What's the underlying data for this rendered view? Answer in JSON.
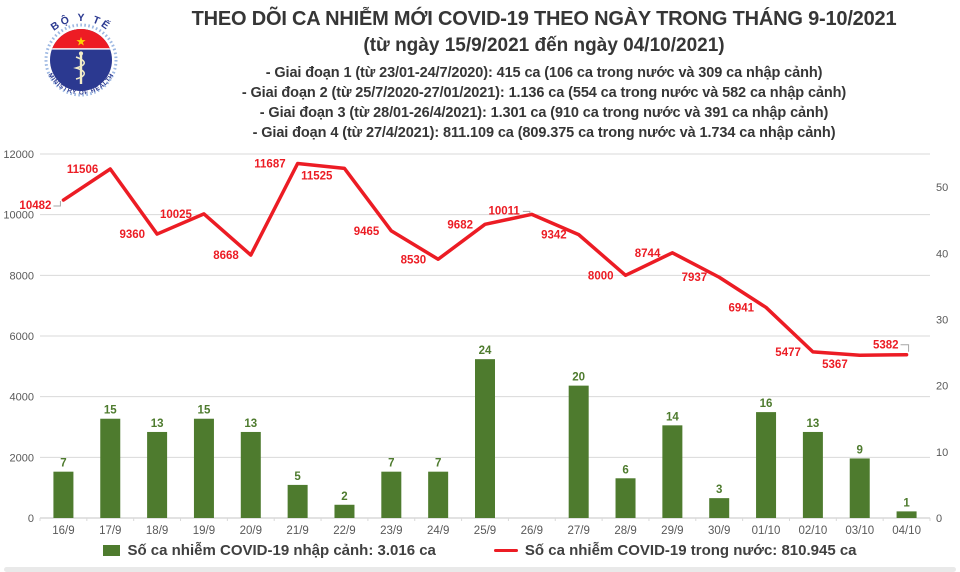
{
  "header": {
    "title": "THEO DÕI CA NHIỄM MỚI COVID-19 THEO NGÀY TRONG THÁNG 9-10/2021",
    "subtitle": "(từ ngày 15/9/2021 đến ngày 04/10/2021)",
    "phases": [
      "- Giai đoạn 1 (từ 23/01-24/7/2020): 415 ca (106 ca trong nước và 309 ca nhập cảnh)",
      "- Giai đoạn 2 (từ 25/7/2020-27/01/2021): 1.136 ca (554 ca trong nước và 582 ca nhập cảnh)",
      "- Giai đoạn 3 (từ 28/01-26/4/2021): 1.301 ca (910 ca trong nước và 391 ca nhập cảnh)",
      "- Giai đoạn 4 (từ 27/4/2021): 811.109 ca (809.375 ca trong nước và 1.734 ca nhập cảnh)"
    ]
  },
  "logo": {
    "top_text": "BỘ Y TẾ",
    "bottom_text": "MINISTRY OF HEALTH"
  },
  "legend": {
    "bars_label": "Số ca nhiễm COVID-19 nhập cảnh: 3.016 ca",
    "line_label": "Số ca nhiễm COVID-19 trong nước: 810.945 ca"
  },
  "colors": {
    "bar": "#4e7b2e",
    "bar_label": "#4e7b2e",
    "line": "#ec1c24",
    "line_label": "#ec1c24",
    "grid": "#d9d9d9",
    "axis_line": "#c6c6c6",
    "axis_text": "#595959",
    "leader": "#a6a6a6",
    "title_text": "#363636",
    "logo_blue": "#2b3990",
    "logo_red": "#ed1c24",
    "logo_star": "#ffd400"
  },
  "chart_data": {
    "type": "combo-bar-line",
    "title": "THEO DÕI CA NHIỄM MỚI COVID-19 THEO NGÀY TRONG THÁNG 9-10/2021",
    "categories": [
      "16/9",
      "17/9",
      "18/9",
      "19/9",
      "20/9",
      "21/9",
      "22/9",
      "23/9",
      "24/9",
      "25/9",
      "26/9",
      "27/9",
      "28/9",
      "29/9",
      "30/9",
      "01/10",
      "02/10",
      "03/10",
      "04/10"
    ],
    "series": [
      {
        "name": "Số ca nhiễm COVID-19 nhập cảnh",
        "type": "bar",
        "axis": "right",
        "values": [
          7,
          15,
          13,
          15,
          13,
          5,
          2,
          7,
          7,
          24,
          0,
          20,
          6,
          14,
          3,
          16,
          13,
          9,
          1
        ]
      },
      {
        "name": "Số ca nhiễm COVID-19 trong nước",
        "type": "line",
        "axis": "left",
        "values": [
          10482,
          11506,
          9360,
          10025,
          8668,
          11687,
          11525,
          9465,
          8530,
          9682,
          10011,
          9342,
          8000,
          8744,
          7937,
          6941,
          5477,
          5367,
          5382
        ]
      }
    ],
    "left_axis": {
      "ticks": [
        0,
        2000,
        4000,
        6000,
        8000,
        10000,
        12000
      ],
      "max": 12000
    },
    "right_axis": {
      "ticks": [
        0,
        10,
        20,
        30,
        40,
        50
      ],
      "max": 55
    },
    "grid": true,
    "legend_position": "bottom",
    "xlabel": "",
    "ylabel": ""
  }
}
